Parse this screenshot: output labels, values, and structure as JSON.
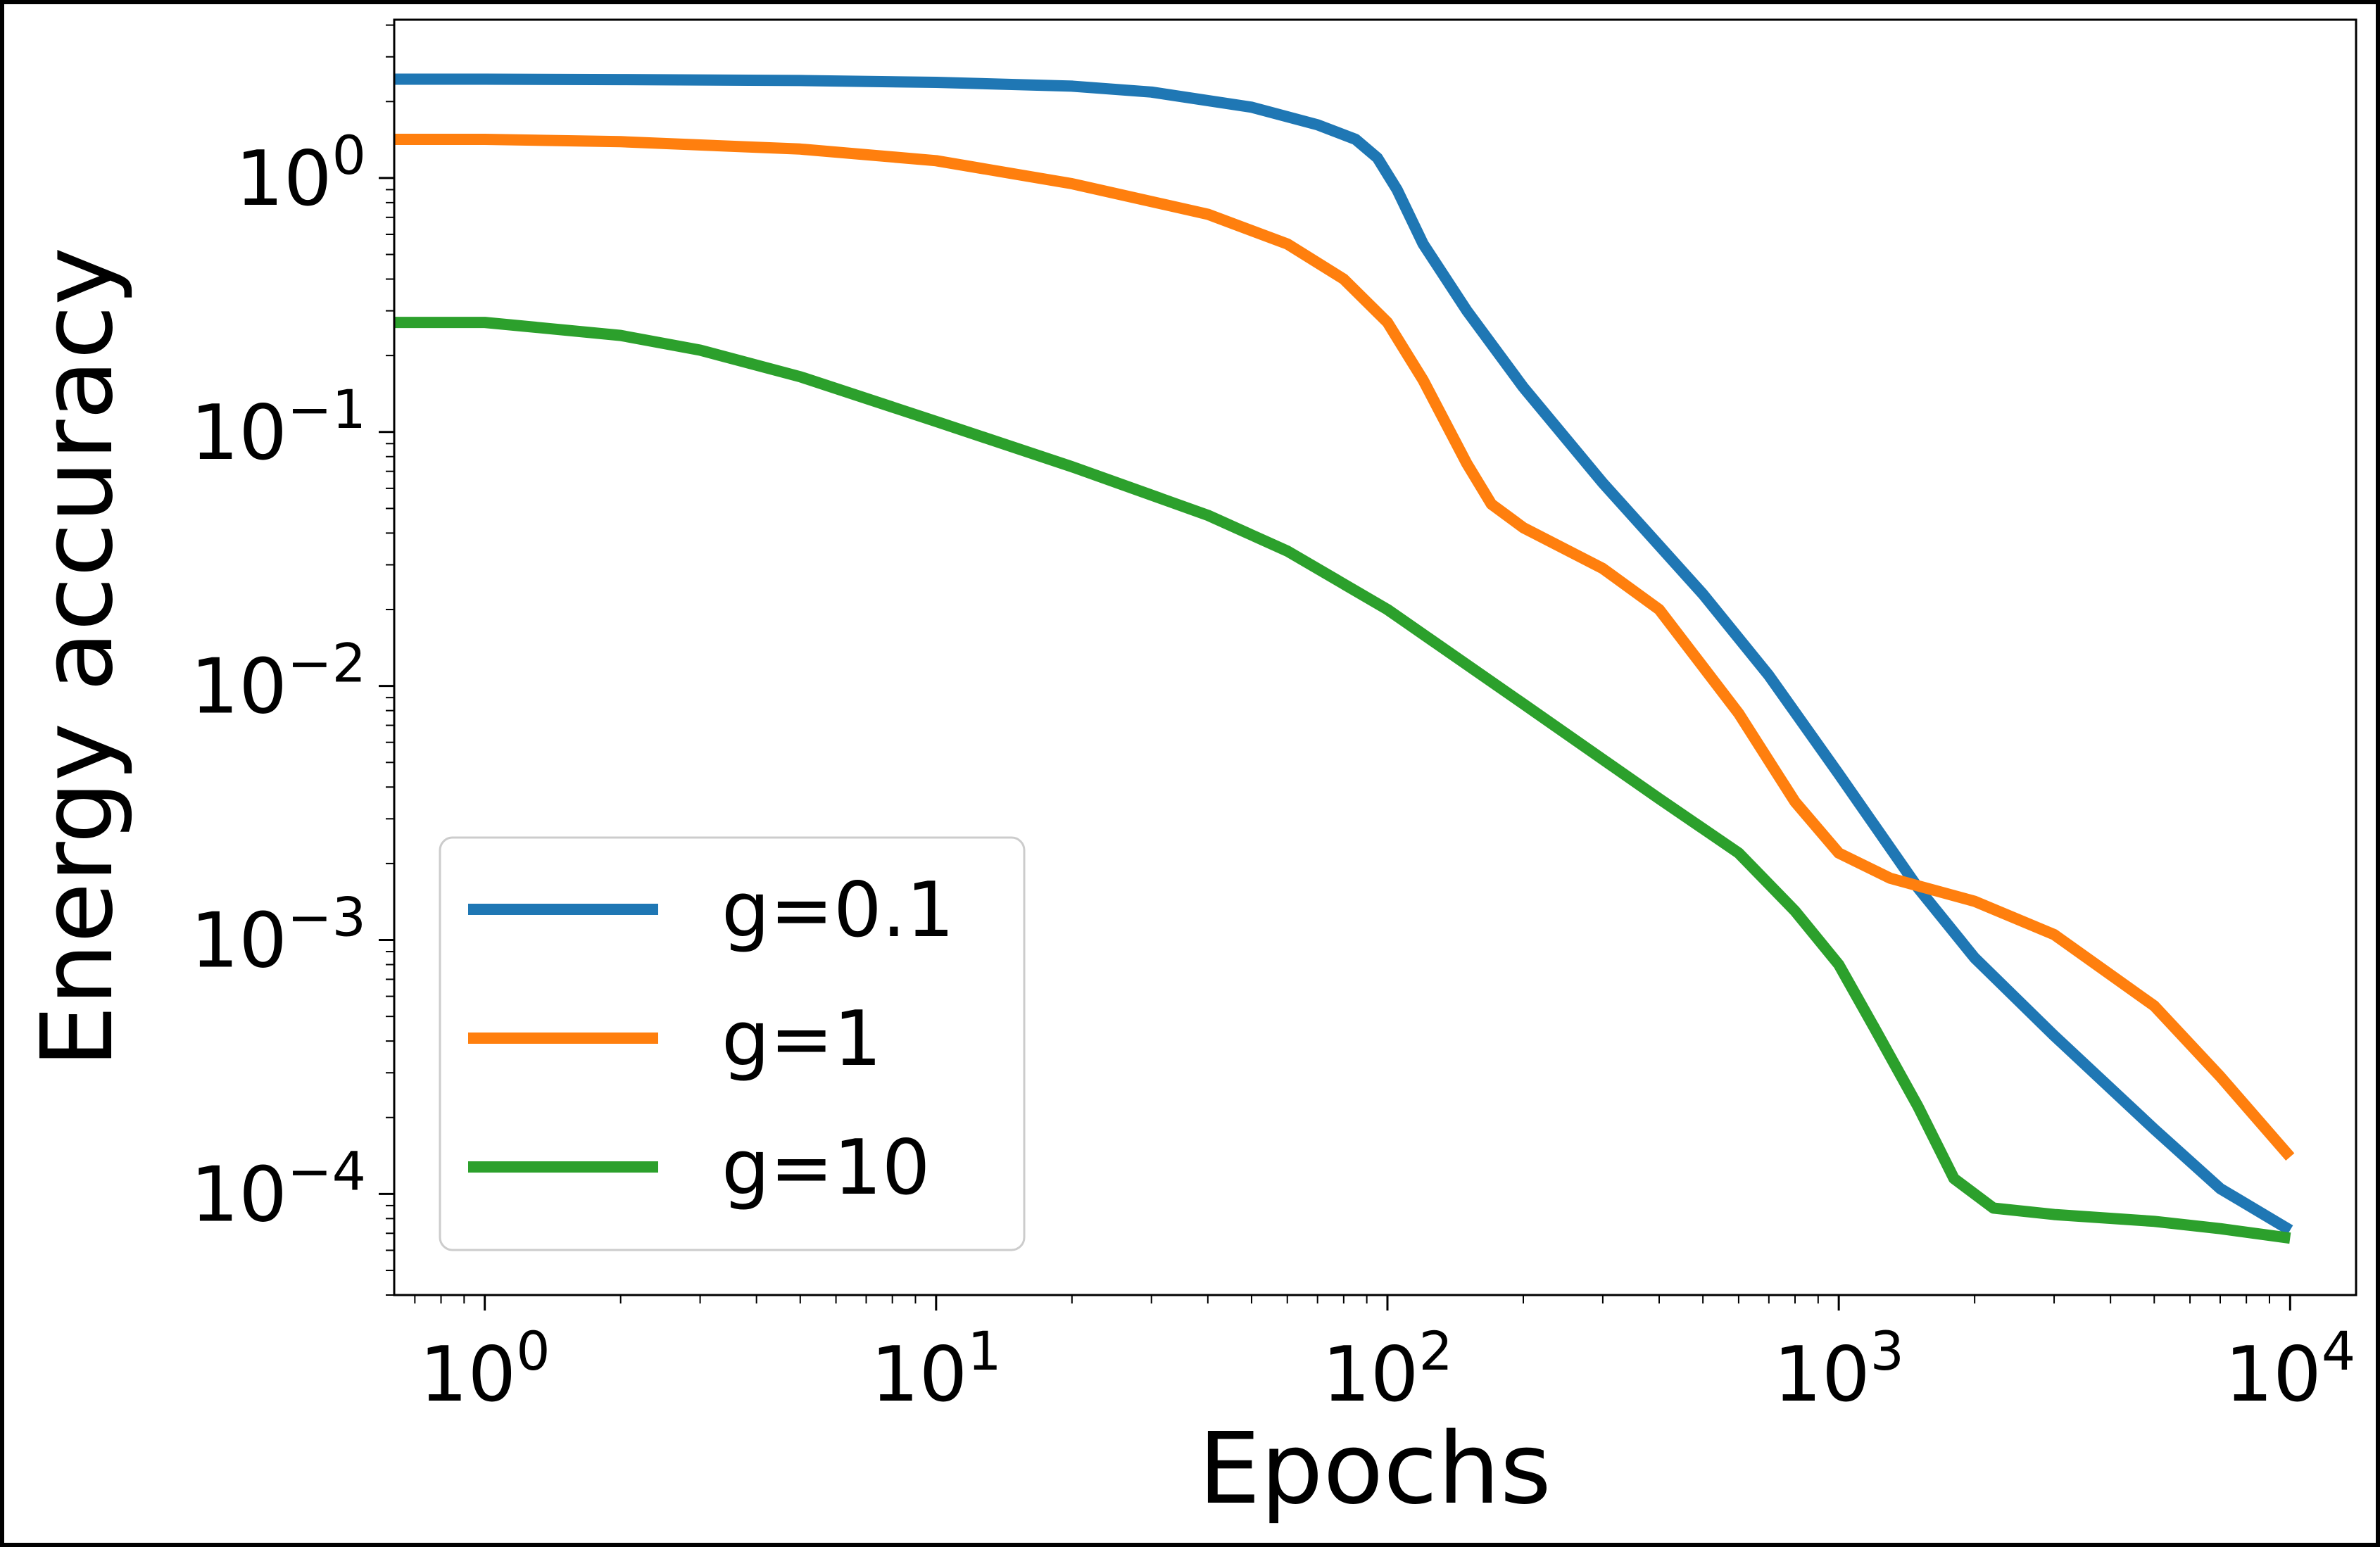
{
  "chart_data": {
    "type": "line",
    "title": "",
    "xlabel": "Epochs",
    "ylabel": "Energy accuracy",
    "xscale": "log",
    "yscale": "log",
    "xlim": [
      0.63,
      14000
    ],
    "ylim": [
      4e-05,
      4.2
    ],
    "x_ticks": [
      {
        "value": 1,
        "base": "10",
        "exp": "0"
      },
      {
        "value": 10,
        "base": "10",
        "exp": "1"
      },
      {
        "value": 100,
        "base": "10",
        "exp": "2"
      },
      {
        "value": 1000,
        "base": "10",
        "exp": "3"
      },
      {
        "value": 10000,
        "base": "10",
        "exp": "4"
      }
    ],
    "y_ticks": [
      {
        "value": 1,
        "base": "10",
        "exp": "0"
      },
      {
        "value": 0.1,
        "base": "10",
        "exp": "−1"
      },
      {
        "value": 0.01,
        "base": "10",
        "exp": "−2"
      },
      {
        "value": 0.001,
        "base": "10",
        "exp": "−3"
      },
      {
        "value": 0.0001,
        "base": "10",
        "exp": "−4"
      }
    ],
    "grid": false,
    "legend": "lower-left",
    "series": [
      {
        "name": "g=0.1",
        "color": "#1f77b4",
        "points": [
          [
            0.63,
            2.45
          ],
          [
            1,
            2.45
          ],
          [
            2,
            2.44
          ],
          [
            5,
            2.42
          ],
          [
            10,
            2.38
          ],
          [
            20,
            2.3
          ],
          [
            30,
            2.18
          ],
          [
            50,
            1.9
          ],
          [
            70,
            1.62
          ],
          [
            85,
            1.42
          ],
          [
            95,
            1.2
          ],
          [
            105,
            0.9
          ],
          [
            120,
            0.55
          ],
          [
            150,
            0.3
          ],
          [
            200,
            0.15
          ],
          [
            300,
            0.063
          ],
          [
            500,
            0.023
          ],
          [
            700,
            0.011
          ],
          [
            1000,
            0.0045
          ],
          [
            1500,
            0.0016
          ],
          [
            2000,
            0.00085
          ],
          [
            3000,
            0.00042
          ],
          [
            5000,
            0.00018
          ],
          [
            7000,
            0.000105
          ],
          [
            10000,
            7.2e-05
          ]
        ]
      },
      {
        "name": "g=1",
        "color": "#ff7f0e",
        "points": [
          [
            0.63,
            1.42
          ],
          [
            1,
            1.42
          ],
          [
            2,
            1.39
          ],
          [
            5,
            1.3
          ],
          [
            10,
            1.17
          ],
          [
            20,
            0.95
          ],
          [
            40,
            0.72
          ],
          [
            60,
            0.55
          ],
          [
            80,
            0.4
          ],
          [
            100,
            0.27
          ],
          [
            120,
            0.16
          ],
          [
            150,
            0.075
          ],
          [
            170,
            0.052
          ],
          [
            200,
            0.042
          ],
          [
            300,
            0.029
          ],
          [
            400,
            0.02
          ],
          [
            600,
            0.0078
          ],
          [
            800,
            0.0035
          ],
          [
            1000,
            0.0022
          ],
          [
            1300,
            0.00175
          ],
          [
            2000,
            0.00142
          ],
          [
            3000,
            0.00105
          ],
          [
            5000,
            0.00055
          ],
          [
            7000,
            0.00029
          ],
          [
            10000,
            0.00014
          ]
        ]
      },
      {
        "name": "g=10",
        "color": "#2ca02c",
        "points": [
          [
            0.63,
            0.27
          ],
          [
            1,
            0.27
          ],
          [
            2,
            0.24
          ],
          [
            3,
            0.21
          ],
          [
            5,
            0.165
          ],
          [
            10,
            0.11
          ],
          [
            20,
            0.073
          ],
          [
            40,
            0.047
          ],
          [
            60,
            0.034
          ],
          [
            100,
            0.02
          ],
          [
            200,
            0.0085
          ],
          [
            400,
            0.0036
          ],
          [
            600,
            0.0022
          ],
          [
            800,
            0.0013
          ],
          [
            1000,
            0.0008
          ],
          [
            1200,
            0.00045
          ],
          [
            1500,
            0.00022
          ],
          [
            1800,
            0.000115
          ],
          [
            2200,
            8.8e-05
          ],
          [
            3000,
            8.3e-05
          ],
          [
            5000,
            7.8e-05
          ],
          [
            7000,
            7.3e-05
          ],
          [
            10000,
            6.7e-05
          ]
        ]
      }
    ]
  }
}
